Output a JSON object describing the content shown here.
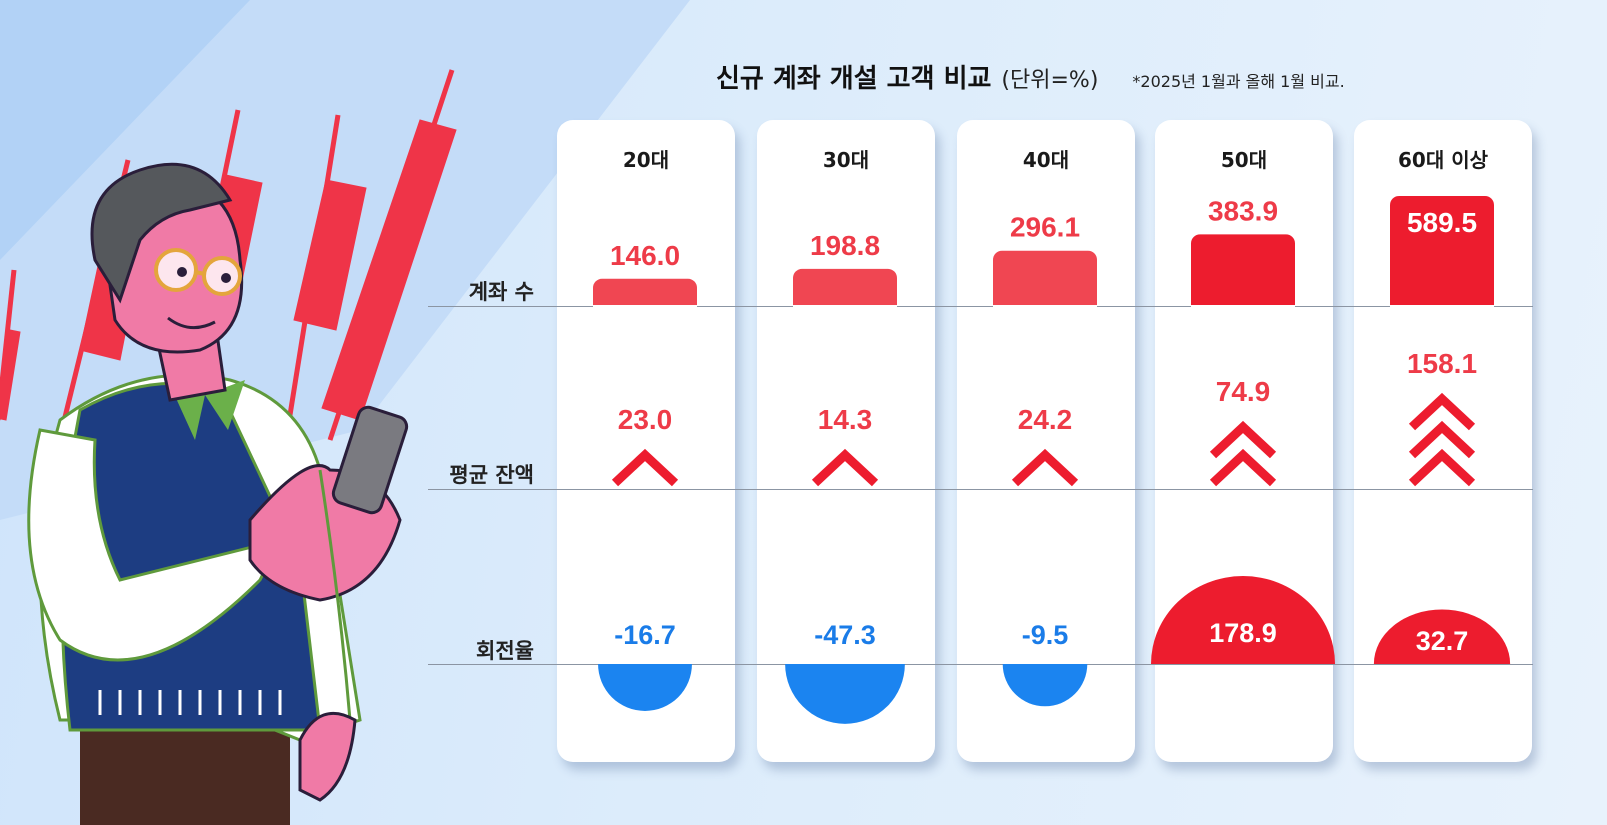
{
  "title": "신규 계좌 개설 고객 비교",
  "unit": "(단위=%)",
  "note": "*2025년 1월과 올해 1월 비교.",
  "colors": {
    "red_light": "#f04652",
    "red_dark": "#ed1c2e",
    "blue_light": "#1b84f0",
    "blue_dark": "#0d57cf",
    "value_red": "#ee3b48",
    "value_blue": "#1a7ce8",
    "candle_red": "#ef3448",
    "background": "#dcecfb"
  },
  "illustration": {
    "description_icon": "man-holding-smartphone-illustration",
    "candles_icon": "candlestick-chart-icon"
  },
  "chart_data": {
    "type": "table",
    "categories": [
      "20대",
      "30대",
      "40대",
      "50대",
      "60대 이상"
    ],
    "row_labels": {
      "accounts": "계좌 수",
      "balance": "평균 잔액",
      "turnover": "회전율"
    },
    "series": [
      {
        "name": "계좌 수",
        "values": [
          146.0,
          198.8,
          296.1,
          383.9,
          589.5
        ],
        "labels": [
          "146.0",
          "198.8",
          "296.1",
          "383.9",
          "589.5"
        ]
      },
      {
        "name": "평균 잔액",
        "values": [
          23.0,
          14.3,
          24.2,
          74.9,
          158.1
        ],
        "labels": [
          "23.0",
          "14.3",
          "24.2",
          "74.9",
          "158.1"
        ],
        "chevrons": [
          1,
          1,
          1,
          2,
          3
        ]
      },
      {
        "name": "회전율",
        "values": [
          -16.7,
          -47.3,
          -9.5,
          178.9,
          32.7
        ],
        "labels": [
          "-16.7",
          "-47.3",
          "-9.5",
          "178.9",
          "32.7"
        ]
      }
    ]
  }
}
